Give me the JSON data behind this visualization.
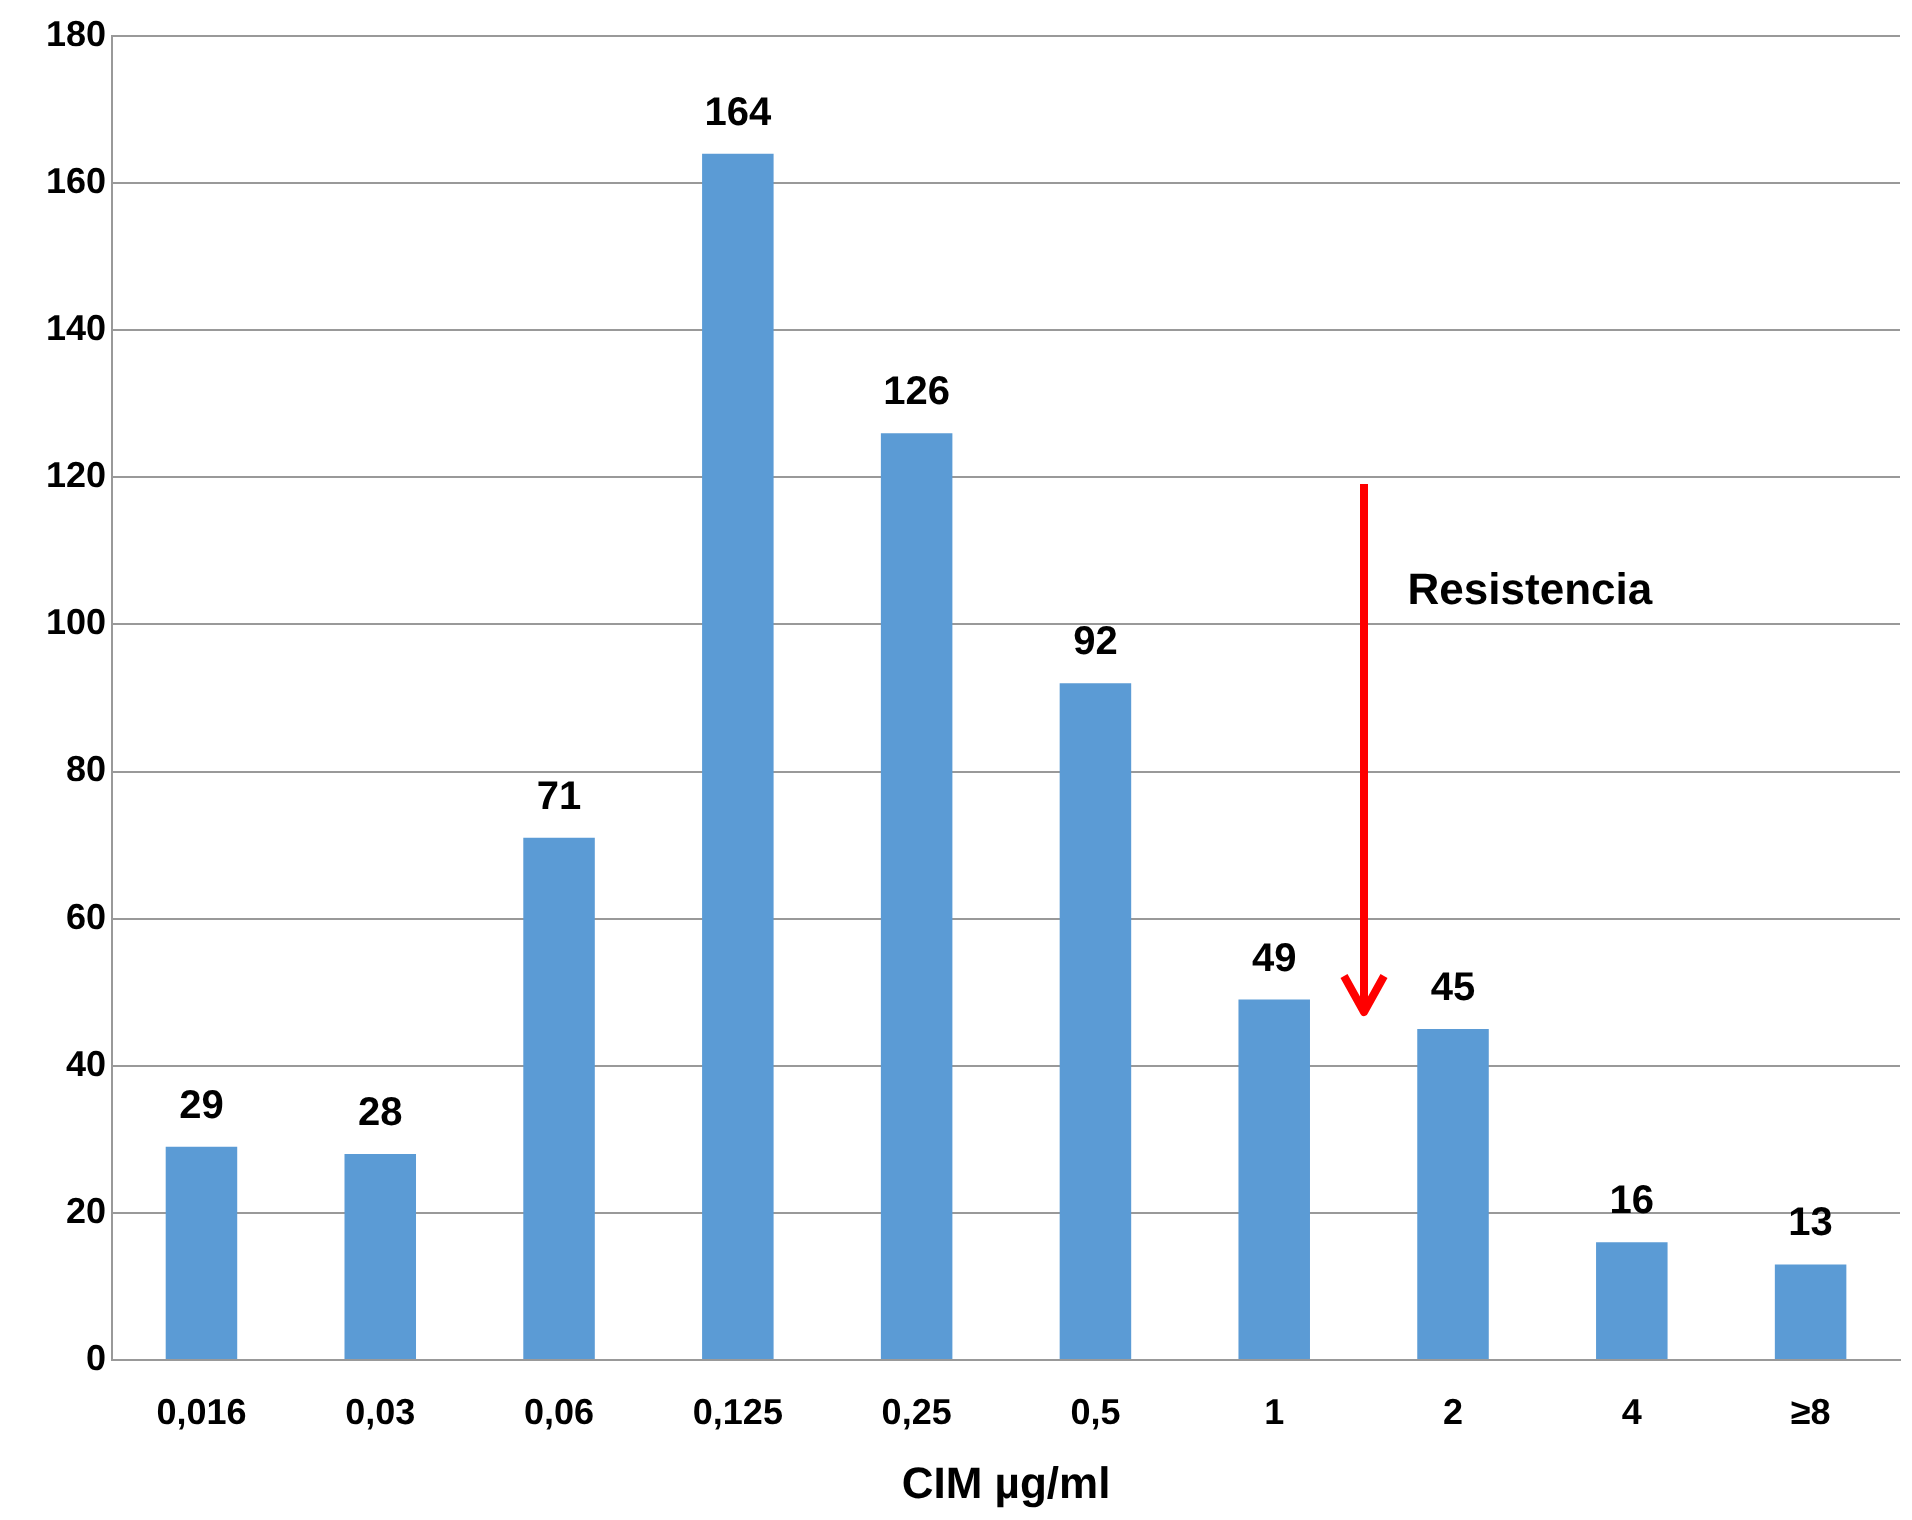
{
  "chart_data": {
    "type": "bar",
    "xlabel": "CIM µg/ml",
    "categories": [
      "0,016",
      "0,03",
      "0,06",
      "0,125",
      "0,25",
      "0,5",
      "1",
      "2",
      "4",
      "≥8"
    ],
    "values": [
      29,
      28,
      71,
      164,
      126,
      92,
      49,
      45,
      16,
      13
    ],
    "color": "#5b9bd5",
    "ylim": [
      0,
      180
    ],
    "yticks": [
      0,
      20,
      40,
      60,
      80,
      100,
      120,
      140,
      160,
      180
    ],
    "grid": "y",
    "data_labels": true,
    "annotations": [
      "Resistencia"
    ]
  }
}
